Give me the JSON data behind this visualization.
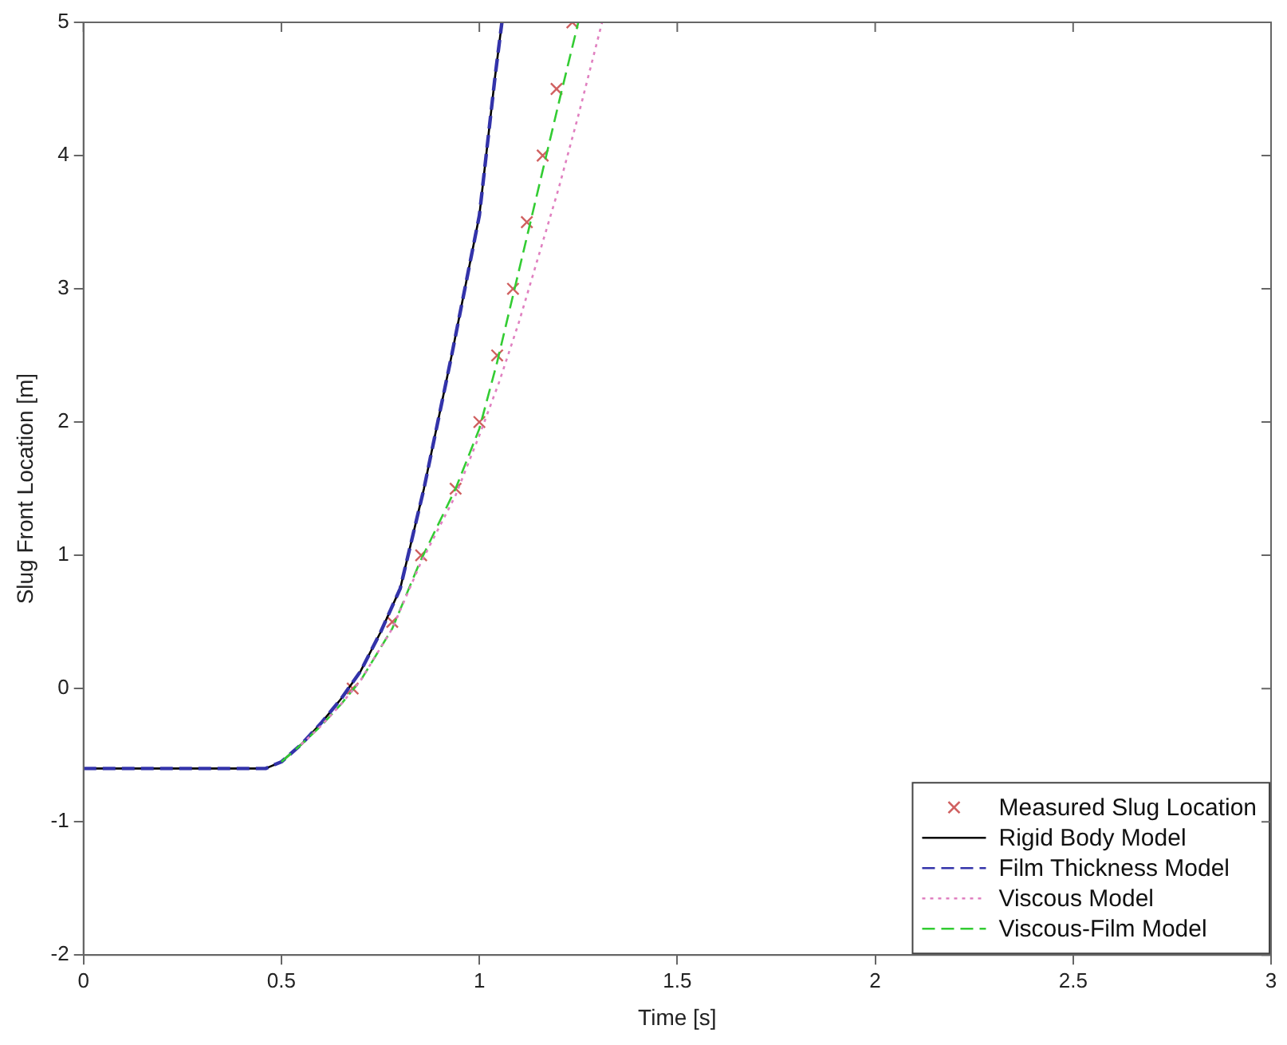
{
  "chart_data": {
    "type": "line",
    "xlabel": "Time [s]",
    "ylabel": "Slug Front Location [m]",
    "xlim": [
      0,
      3
    ],
    "xticks": [
      0,
      0.5,
      1,
      1.5,
      2,
      2.5,
      3
    ],
    "ylim": [
      -2,
      5
    ],
    "yticks": [
      -2,
      -1,
      0,
      1,
      2,
      3,
      4,
      5
    ],
    "grid": false,
    "legend": "bottom right",
    "series": [
      {
        "name": "Measured Slug Location",
        "type": "scatter",
        "marker": "cross",
        "color": "#d06060",
        "x": [
          0.68,
          0.78,
          0.853,
          0.94,
          1.0,
          1.045,
          1.085,
          1.12,
          1.16,
          1.195,
          1.235
        ],
        "values": [
          0,
          0.5,
          1,
          1.5,
          2,
          2.5,
          3,
          3.5,
          4,
          4.5,
          5
        ]
      },
      {
        "name": "Rigid Body Model",
        "type": "line",
        "marker": "none",
        "line_style": "solid",
        "color": "#000000",
        "x": [
          0,
          0.46,
          0.5,
          0.55,
          0.6,
          0.65,
          0.7,
          0.75,
          0.8,
          0.86,
          0.93,
          1.0,
          1.04,
          1.057
        ],
        "values": [
          -0.6,
          -0.6,
          -0.55,
          -0.42,
          -0.26,
          -0.08,
          0.13,
          0.42,
          0.75,
          1.5,
          2.5,
          3.55,
          4.6,
          5
        ]
      },
      {
        "name": "Film Thickness Model",
        "type": "line",
        "marker": "none",
        "line_style": "dashed",
        "color": "#3333aa",
        "x": [
          0,
          0.46,
          0.5,
          0.55,
          0.6,
          0.65,
          0.7,
          0.75,
          0.8,
          0.86,
          0.93,
          1.0,
          1.04,
          1.057
        ],
        "values": [
          -0.6,
          -0.6,
          -0.55,
          -0.42,
          -0.26,
          -0.08,
          0.13,
          0.42,
          0.75,
          1.5,
          2.5,
          3.55,
          4.6,
          5
        ]
      },
      {
        "name": "Viscous Model",
        "type": "line",
        "marker": "none",
        "line_style": "dotted",
        "color": "#e080c0",
        "x": [
          0.55,
          0.6,
          0.65,
          0.7,
          0.78,
          0.85,
          0.94,
          1.0,
          1.05,
          1.1,
          1.15,
          1.2,
          1.25,
          1.31
        ],
        "values": [
          -0.42,
          -0.28,
          -0.12,
          0.06,
          0.45,
          0.93,
          1.45,
          1.9,
          2.3,
          2.75,
          3.25,
          3.75,
          4.3,
          5
        ]
      },
      {
        "name": "Viscous-Film Model",
        "type": "line",
        "marker": "none",
        "line_style": "dashed",
        "color": "#33cc33",
        "x": [
          0.5,
          0.55,
          0.6,
          0.65,
          0.7,
          0.78,
          0.85,
          0.94,
          1.0,
          1.045,
          1.085,
          1.125,
          1.165,
          1.205,
          1.25
        ],
        "values": [
          -0.55,
          -0.42,
          -0.28,
          -0.12,
          0.06,
          0.45,
          0.95,
          1.5,
          1.95,
          2.45,
          2.95,
          3.45,
          3.95,
          4.45,
          5
        ]
      }
    ]
  }
}
